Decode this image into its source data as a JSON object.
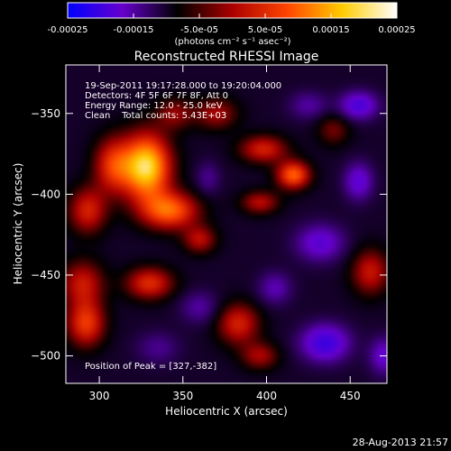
{
  "chart_data": {
    "type": "heatmap",
    "title": "Reconstructed RHESSI Image",
    "xlabel": "Heliocentric X (arcsec)",
    "ylabel": "Heliocentric Y (arcsec)",
    "xlim": [
      280,
      472
    ],
    "ylim": [
      -517,
      -320
    ],
    "xticks": [
      300,
      350,
      400,
      450
    ],
    "yticks": [
      -350,
      -400,
      -450,
      -500
    ],
    "colorbar": {
      "ticks": [
        "-0.00025",
        "-0.00015",
        "-5.0e-05",
        "5.0e-05",
        "0.00015",
        "0.00025"
      ],
      "range": [
        -0.00025,
        0.00025
      ],
      "unit_label": "(photons cm⁻² s⁻¹ asec⁻²)",
      "colormap": [
        "#0000ff",
        "#6600cc",
        "#000000",
        "#aa0000",
        "#ff4400",
        "#ffcc00",
        "#ffffff"
      ]
    },
    "annotations": [
      "19-Sep-2011 19:17:28.000 to 19:20:04.000",
      "Detectors: 4F 5F 6F 7F 8F, Att 0",
      "Energy Range: 12.0 - 25.0 keV",
      "Clean    Total counts: 5.43E+03"
    ],
    "peak_label": "Position of Peak = [327,-382]",
    "peak": {
      "x": 327,
      "y": -382
    },
    "sources": [
      {
        "x": 328,
        "y": -383,
        "sx": 10,
        "sy": 14,
        "amp": 0.00024
      },
      {
        "x": 342,
        "y": -410,
        "sx": 12,
        "sy": 8,
        "amp": 0.00016
      },
      {
        "x": 308,
        "y": -382,
        "sx": 8,
        "sy": 12,
        "amp": 0.00012
      },
      {
        "x": 293,
        "y": -410,
        "sx": 8,
        "sy": 10,
        "amp": 0.00011
      },
      {
        "x": 290,
        "y": -455,
        "sx": 9,
        "sy": 10,
        "amp": 0.0001
      },
      {
        "x": 292,
        "y": -480,
        "sx": 8,
        "sy": 10,
        "amp": 0.00013
      },
      {
        "x": 330,
        "y": -455,
        "sx": 10,
        "sy": 7,
        "amp": 0.00012
      },
      {
        "x": 360,
        "y": -428,
        "sx": 7,
        "sy": 6,
        "amp": 9e-05
      },
      {
        "x": 370,
        "y": -350,
        "sx": 9,
        "sy": 7,
        "amp": 8e-05
      },
      {
        "x": 398,
        "y": -372,
        "sx": 10,
        "sy": 6,
        "amp": 0.00011
      },
      {
        "x": 416,
        "y": -388,
        "sx": 7,
        "sy": 6,
        "amp": 0.00016
      },
      {
        "x": 396,
        "y": -405,
        "sx": 8,
        "sy": 5,
        "amp": 9e-05
      },
      {
        "x": 383,
        "y": -480,
        "sx": 9,
        "sy": 9,
        "amp": 0.00011
      },
      {
        "x": 396,
        "y": -500,
        "sx": 8,
        "sy": 6,
        "amp": 8e-05
      },
      {
        "x": 462,
        "y": -448,
        "sx": 8,
        "sy": 10,
        "amp": 0.0001
      },
      {
        "x": 440,
        "y": -360,
        "sx": 7,
        "sy": 7,
        "amp": 6e-05
      },
      {
        "x": 345,
        "y": -350,
        "sx": 8,
        "sy": 7,
        "amp": 7e-05
      },
      {
        "x": 455,
        "y": -392,
        "sx": 6,
        "sy": 8,
        "amp": -0.0001
      },
      {
        "x": 432,
        "y": -430,
        "sx": 10,
        "sy": 8,
        "amp": -0.0001
      },
      {
        "x": 435,
        "y": -492,
        "sx": 10,
        "sy": 8,
        "amp": -0.00014
      },
      {
        "x": 455,
        "y": -345,
        "sx": 8,
        "sy": 6,
        "amp": -0.00012
      },
      {
        "x": 405,
        "y": -458,
        "sx": 7,
        "sy": 7,
        "amp": -7e-05
      },
      {
        "x": 360,
        "y": -470,
        "sx": 8,
        "sy": 7,
        "amp": -6e-05
      },
      {
        "x": 365,
        "y": -390,
        "sx": 5,
        "sy": 7,
        "amp": -5e-05
      },
      {
        "x": 335,
        "y": -495,
        "sx": 9,
        "sy": 7,
        "amp": -5e-05
      },
      {
        "x": 470,
        "y": -500,
        "sx": 6,
        "sy": 8,
        "amp": -9e-05
      },
      {
        "x": 425,
        "y": -345,
        "sx": 8,
        "sy": 6,
        "amp": -6e-05
      }
    ]
  },
  "footer": {
    "timestamp": "28-Aug-2013 21:57"
  }
}
